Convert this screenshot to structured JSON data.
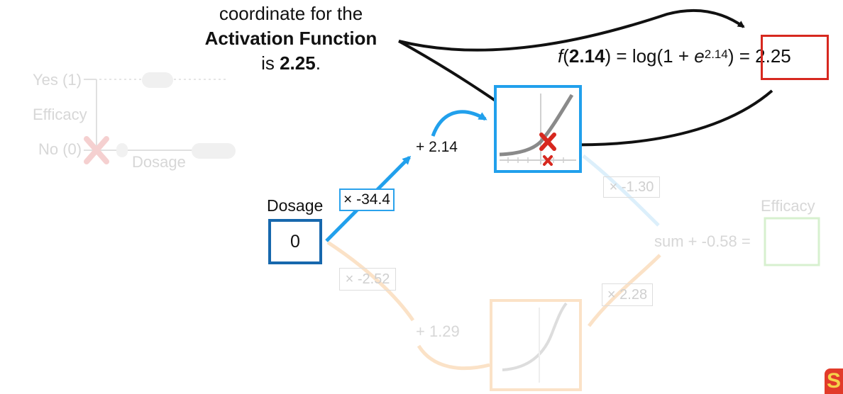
{
  "caption": {
    "line1": "coordinate for the",
    "line2": "Activation Function",
    "line3_prefix": "is ",
    "line3_value": "2.25",
    "line3_suffix": "."
  },
  "formula": {
    "f": "f",
    "open": "(",
    "input": "2.14",
    "close": ")",
    "rhs_open": " = log(1 + ",
    "e": "e",
    "exponent": "2.14",
    "rhs_close": ")",
    "equals_result": " = 2.25"
  },
  "background_graph": {
    "yes_label": "Yes (1)",
    "efficacy_label": "Efficacy",
    "no_label": "No (0)",
    "dosage_axis_label": "Dosage"
  },
  "input": {
    "label": "Dosage",
    "value": "0"
  },
  "top_path": {
    "weight": "× -34.4",
    "bias": "+ 2.14",
    "output_weight": "× -1.30"
  },
  "bottom_path": {
    "weight": "× -2.52",
    "bias": "+ 1.29",
    "output_weight": "× 2.28"
  },
  "output": {
    "sum_label": "sum + -0.58 =",
    "label": "Efficacy"
  },
  "colors": {
    "accent_blue": "#21a0ec",
    "dark_blue": "#1768ad",
    "red": "#d7281f",
    "faded_orange": "#fbe2c7",
    "faded_green": "#d7f0cf"
  },
  "logo": {
    "glyph": "S"
  }
}
